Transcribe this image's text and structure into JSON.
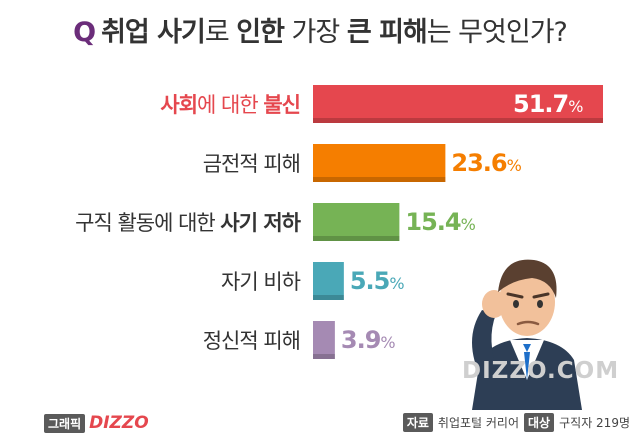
{
  "title": {
    "q": "Q",
    "parts": [
      "취업 사기",
      "로 ",
      "인한",
      " 가장 ",
      "큰 피해",
      "는 무엇인가?"
    ]
  },
  "chart_data": {
    "type": "bar",
    "orientation": "horizontal",
    "categories": [
      {
        "label_bold": "사회",
        "label_mid": "에 대한 ",
        "label_bold2": "불신",
        "value": 51.7,
        "display": "51.7",
        "color": "#e5474e",
        "highlight": true
      },
      {
        "label_bold": "",
        "label_mid": "금전적 피해",
        "label_bold2": "",
        "value": 23.6,
        "display": "23.6",
        "color": "#f57e00",
        "highlight": false
      },
      {
        "label_bold": "",
        "label_mid": "구직 활동에 대한 ",
        "label_bold2": "사기 저하",
        "value": 15.4,
        "display": "15.4",
        "color": "#76b355",
        "highlight": false
      },
      {
        "label_bold": "",
        "label_mid": "자기 비하",
        "label_bold2": "",
        "value": 5.5,
        "display": "5.5",
        "color": "#4aa8b7",
        "highlight": false
      },
      {
        "label_bold": "",
        "label_mid": "정신적 피해",
        "label_bold2": "",
        "value": 3.9,
        "display": "3.9",
        "color": "#a58ab3",
        "highlight": false
      }
    ],
    "unit": "%",
    "xlim": [
      0,
      51.7
    ]
  },
  "watermark": "DIZZO.COM",
  "footer": {
    "graphic_tag": "그래픽",
    "brand": "DIZZO",
    "source_tag": "자료",
    "source": "취업포털 커리어",
    "target_tag": "대상",
    "target": "구직자 219명"
  }
}
